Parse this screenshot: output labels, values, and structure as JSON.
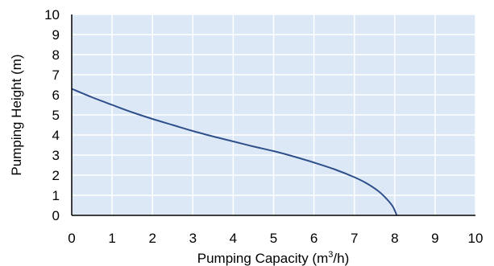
{
  "chart_data": {
    "type": "line",
    "title": "",
    "xlabel": "Pumping Capacity (m",
    "xlabel_sup": "3",
    "xlabel_end": "/h)",
    "ylabel": "Pumping Height (m)",
    "xlim": [
      0,
      10
    ],
    "ylim": [
      0,
      10
    ],
    "x_ticks": [
      "0",
      "1",
      "2",
      "3",
      "4",
      "5",
      "6",
      "7",
      "8",
      "9",
      "10"
    ],
    "y_ticks": [
      "0",
      "1",
      "2",
      "3",
      "4",
      "5",
      "6",
      "7",
      "8",
      "9",
      "10"
    ],
    "grid": true,
    "legend": "none",
    "plot_background": "#dde8f6",
    "grid_color": "#ffffff",
    "axis_color": "#000000",
    "series": [
      {
        "color": "#2e4f8a",
        "x": [
          0,
          0.5,
          1,
          1.5,
          2,
          2.5,
          3,
          3.5,
          4,
          4.5,
          5,
          5.5,
          6,
          6.5,
          7,
          7.3,
          7.6,
          7.8,
          7.95,
          8.02,
          8.05
        ],
        "y": [
          6.3,
          5.88,
          5.5,
          5.13,
          4.8,
          4.5,
          4.2,
          3.93,
          3.68,
          3.43,
          3.2,
          2.93,
          2.63,
          2.3,
          1.9,
          1.6,
          1.2,
          0.82,
          0.45,
          0.15,
          0
        ]
      }
    ]
  }
}
